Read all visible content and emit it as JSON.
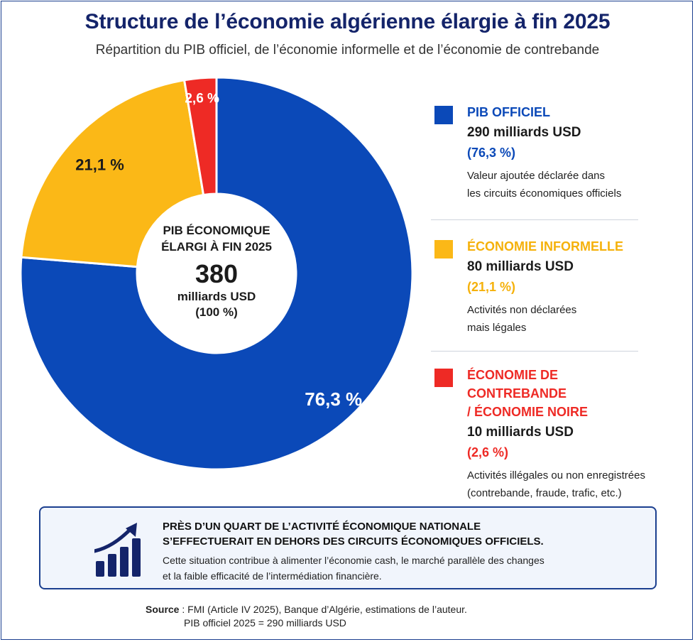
{
  "header": {
    "title": "Structure de l’économie algérienne élargie à fin 2025",
    "subtitle": "Répartition du PIB officiel, de l’économie informelle et de l’économie de contrebande"
  },
  "chart_data": {
    "type": "pie",
    "style": "donut",
    "labels": [
      "PIB OFFICIEL",
      "ÉCONOMIE INFORMELLE",
      "ÉCONOMIE DE CONTREBANDE / ÉCONOMIE NOIRE"
    ],
    "values": [
      290,
      80,
      10
    ],
    "percent_labels": [
      "76,3 %",
      "21,1 %",
      "2,6 %"
    ],
    "colors": [
      "#0b49b8",
      "#fbb817",
      "#ee2a25"
    ],
    "legend_position": "right"
  },
  "center": {
    "title_line1": "PIB ÉCONOMIQUE",
    "title_line2": "ÉLARGI À FIN 2025",
    "value": "380",
    "unit": "milliards USD",
    "percent": "(100 %)"
  },
  "legend": [
    {
      "name": "PIB OFFICIEL",
      "value": "290 milliards USD",
      "percent": "(76,3 %)",
      "desc1": "Valeur ajoutée déclarée dans",
      "desc2": "les circuits économiques officiels",
      "color": "#0b49b8"
    },
    {
      "name": "ÉCONOMIE INFORMELLE",
      "value": "80 milliards USD",
      "percent": "(21,1 %)",
      "desc1": "Activités non déclarées",
      "desc2": "mais légales",
      "color": "#fbb817"
    },
    {
      "name_line1": "ÉCONOMIE DE CONTREBANDE",
      "name_line2": "/ ÉCONOMIE NOIRE",
      "value": "10 milliards USD",
      "percent": "(2,6 %)",
      "desc1": "Activités illégales ou non enregistrées",
      "desc2": "(contrebande, fraude, trafic, etc.)",
      "color": "#ee2a25"
    }
  ],
  "callout": {
    "icon": "growth-chart-icon",
    "headline_line1": "PRÈS D’UN QUART DE L’ACTIVITÉ ÉCONOMIQUE NATIONALE",
    "headline_line2": "S’EFFECTUERAIT EN DEHORS DES CIRCUITS ÉCONOMIQUES OFFICIELS.",
    "text_line1": "Cette situation contribue à alimenter l’économie cash, le marché parallèle des changes",
    "text_line2": "et la faible efficacité de l’intermédiation financière."
  },
  "source": {
    "label": "Source",
    "line1": " : FMI (Article IV 2025), Banque d’Algérie, estimations de l’auteur.",
    "line2": "PIB officiel 2025 = 290 milliards USD"
  }
}
